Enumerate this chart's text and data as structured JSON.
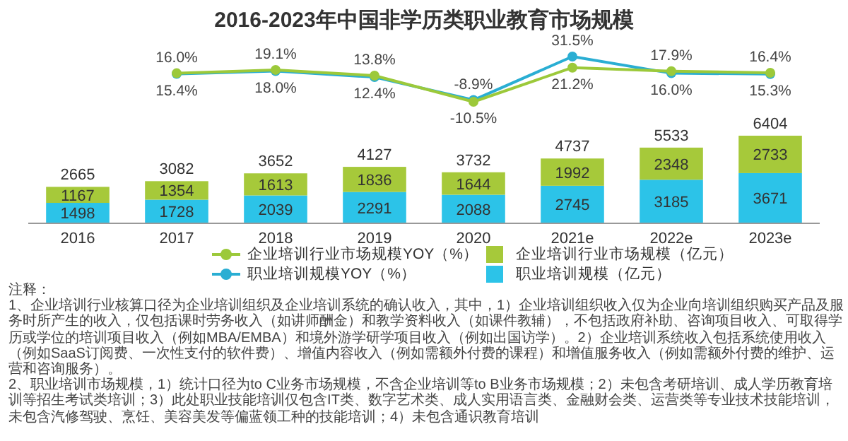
{
  "chart_data": [
    {
      "type": "line",
      "title": "2016-2023年中国非学历类职业教育市场规模",
      "categories": [
        null,
        null,
        null,
        null,
        null,
        null,
        null,
        null
      ],
      "marker": "circle",
      "legend": "bottom",
      "series": [
        {
          "name": "职业培训规模YOY（%）",
          "color": "#2aaed3",
          "values": [
            null,
            15.4,
            18.0,
            12.4,
            -8.9,
            31.5,
            16.0,
            15.3
          ],
          "value_labels": [
            null,
            "15.4%",
            "18.0%",
            "12.4%",
            "-8.9%",
            "31.5%",
            "16.0%",
            "15.3%"
          ]
        },
        {
          "name": "企业培训行业市场规模YOY（%）",
          "color": "#9cc93a",
          "values": [
            null,
            16.0,
            19.1,
            13.8,
            -10.5,
            21.2,
            17.9,
            16.4
          ],
          "value_labels": [
            null,
            "16.0%",
            "19.1%",
            "13.8%",
            "-10.5%",
            "21.2%",
            "17.9%",
            "16.4%"
          ]
        }
      ]
    },
    {
      "type": "bar",
      "categories": [
        "2016",
        "2017",
        "2018",
        "2019",
        "2020",
        "2021e",
        "2022e",
        "2023e"
      ],
      "stacked": true,
      "data_labels": true,
      "legend": "bottom",
      "series": [
        {
          "name": "职业培训规模（亿元）",
          "color": "#2cc3e8",
          "values": [
            1498,
            1728,
            2039,
            2291,
            2088,
            2745,
            3185,
            3671
          ]
        },
        {
          "name": "企业培训行业市场规模（亿元）",
          "color": "#a6c93a",
          "values": [
            1167,
            1354,
            1613,
            1836,
            1644,
            1992,
            2348,
            2733
          ]
        }
      ],
      "totals": [
        "2665",
        "3082",
        "3652",
        "4127",
        "3732",
        "4737",
        "5533",
        "6404"
      ],
      "annotations": [
        "注释：",
        "1、企业培训行业核算口径为企业培训组织及企业培训系统的确认收入，其中，1）企业培训组织收入仅为企业向培训组织购买产品及服务时所产生的收入，仅包括课时劳务收入（如讲师酬金）和教学资料收入（如课件教辅），不包括政府补助、咨询项目收入、可取得学历或学位的培训项目收入（例如MBA/EMBA）和境外游学研学项目收入（例如出国访学）。2）企业培训系统收入包括系统使用收入（例如SaaS订阅费、一次性支付的软件费）、增值内容收入（例如需额外付费的课程）和增值服务收入（例如需额外付费的维护、运营和咨询服务）。",
        "2、职业培训市场规模，1）统计口径为to C业务市场规模，不含企业培训等to B业务市场规模；2）未包含考研培训、成人学历教育培训等招生考试类培训；3）此处职业技能培训仅包含IT类、数字艺术类、成人实用语言类、金融财会类、运营类等专业技术技能培训，未包含汽修驾驶、烹饪、美容美发等偏蓝领工种的技能培训；4）未包含通识教育培训"
      ]
    }
  ]
}
